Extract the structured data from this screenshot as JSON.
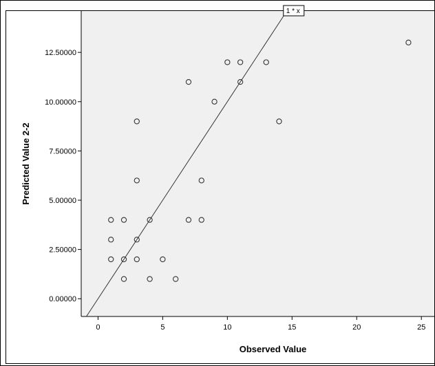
{
  "chart_data": {
    "type": "scatter",
    "title": "",
    "xlabel": "Observed Value",
    "ylabel": "Predicted Value 2-2",
    "xlim": [
      -1.3,
      26
    ],
    "ylim": [
      -0.9,
      14.6
    ],
    "xticks": [
      {
        "value": 0,
        "label": "0"
      },
      {
        "value": 5,
        "label": "5"
      },
      {
        "value": 10,
        "label": "10"
      },
      {
        "value": 15,
        "label": "15"
      },
      {
        "value": 20,
        "label": "20"
      },
      {
        "value": 25,
        "label": "25"
      }
    ],
    "yticks": [
      {
        "value": 0,
        "label": "0.00000"
      },
      {
        "value": 2.5,
        "label": "2.50000"
      },
      {
        "value": 5,
        "label": "5.00000"
      },
      {
        "value": 7.5,
        "label": "7.50000"
      },
      {
        "value": 10,
        "label": "10.00000"
      },
      {
        "value": 12.5,
        "label": "12.50000"
      }
    ],
    "grid": false,
    "reference_line": {
      "label": "1 * x",
      "slope": 1,
      "intercept": 0
    },
    "points": [
      {
        "x": 1,
        "y": 4
      },
      {
        "x": 1,
        "y": 3
      },
      {
        "x": 1,
        "y": 2
      },
      {
        "x": 2,
        "y": 4
      },
      {
        "x": 2,
        "y": 2
      },
      {
        "x": 2,
        "y": 1
      },
      {
        "x": 3,
        "y": 9
      },
      {
        "x": 3,
        "y": 6
      },
      {
        "x": 3,
        "y": 3
      },
      {
        "x": 3,
        "y": 2
      },
      {
        "x": 4,
        "y": 4
      },
      {
        "x": 4,
        "y": 1
      },
      {
        "x": 5,
        "y": 2
      },
      {
        "x": 6,
        "y": 1
      },
      {
        "x": 7,
        "y": 11
      },
      {
        "x": 7,
        "y": 4
      },
      {
        "x": 8,
        "y": 6
      },
      {
        "x": 8,
        "y": 4
      },
      {
        "x": 9,
        "y": 10
      },
      {
        "x": 10,
        "y": 12
      },
      {
        "x": 11,
        "y": 12
      },
      {
        "x": 11,
        "y": 11
      },
      {
        "x": 13,
        "y": 12
      },
      {
        "x": 14,
        "y": 9
      },
      {
        "x": 24,
        "y": 13
      }
    ],
    "colors": {
      "plot_background": "#f0f0f0",
      "page_background": "#ffffff",
      "marker": "#333333",
      "line": "#333333"
    }
  }
}
